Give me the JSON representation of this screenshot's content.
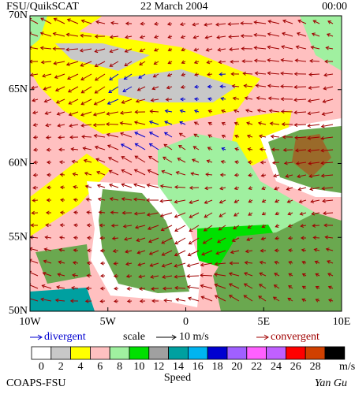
{
  "header": {
    "source": "FSU/QuikSCAT",
    "date": "22 March 2004",
    "time": "00:00"
  },
  "map": {
    "lat_ticks": [
      {
        "value": 70,
        "label": "70N"
      },
      {
        "value": 65,
        "label": "65N"
      },
      {
        "value": 60,
        "label": "60N"
      },
      {
        "value": 55,
        "label": "55N"
      },
      {
        "value": 50,
        "label": "50N"
      }
    ],
    "lon_ticks": [
      {
        "value": -10,
        "label": "10W"
      },
      {
        "value": -5,
        "label": "5W"
      },
      {
        "value": 0,
        "label": "0"
      },
      {
        "value": 5,
        "label": "5E"
      },
      {
        "value": 10,
        "label": "10E"
      }
    ],
    "lat_range": [
      50,
      70
    ],
    "lon_range": [
      -10,
      10
    ]
  },
  "legend": {
    "divergent": "divergent",
    "scale": "scale",
    "scale_value": "10 m/s",
    "convergent": "convergent"
  },
  "colorbar": {
    "labels": [
      0,
      2,
      4,
      6,
      8,
      10,
      12,
      14,
      16,
      18,
      20,
      22,
      24,
      26,
      28
    ],
    "unit": "m/s",
    "title": "Speed",
    "colors": [
      "#ffffff",
      "#c8c8c8",
      "#ffff00",
      "#ffc0c0",
      "#a0f0a0",
      "#00e000",
      "#a0a0a0",
      "#00a0a0",
      "#00b4f0",
      "#0000d0",
      "#a060ff",
      "#ff60ff",
      "#c060ff",
      "#ff0000",
      "#d04000",
      "#000000"
    ]
  },
  "footer": {
    "left": "COAPS-FSU",
    "right": "Yan Gu"
  }
}
